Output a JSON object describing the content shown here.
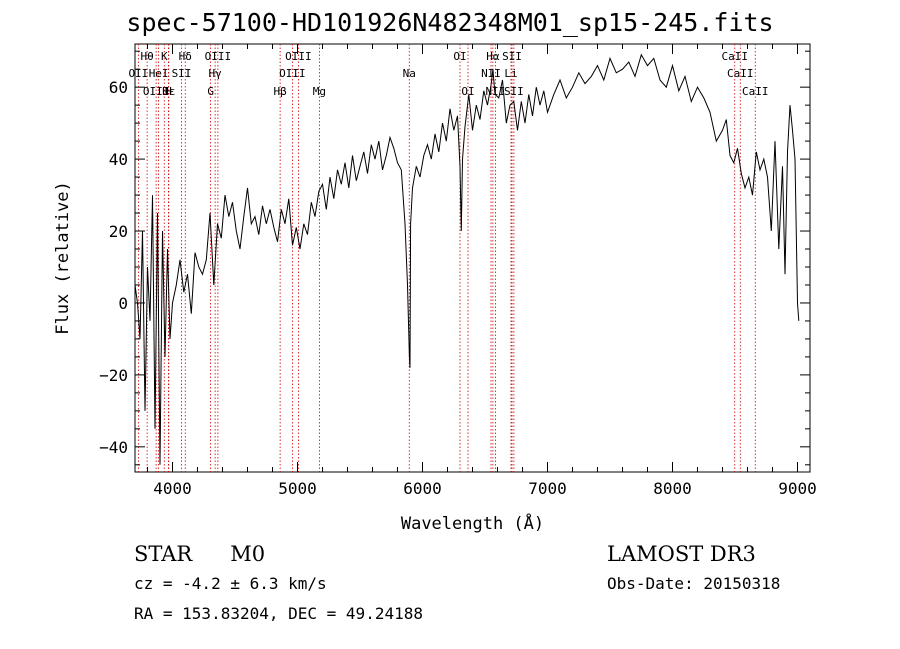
{
  "header": {
    "title": "spec-57100-HD101926N482348M01_sp15-245.fits"
  },
  "info": {
    "object_class": "STAR",
    "subclass": "M0",
    "cz": "cz = -4.2 ± 6.3 km/s",
    "radec": "RA = 153.83204, DEC =  49.24188",
    "survey": "LAMOST DR3",
    "obs_date": "Obs-Date: 20150318"
  },
  "chart_data": {
    "type": "line",
    "title": "spec-57100-HD101926N482348M01_sp15-245.fits",
    "xlabel": "Wavelength (Å)",
    "ylabel": "Flux (relative)",
    "xlim": [
      3700,
      9100
    ],
    "ylim": [
      -47,
      72
    ],
    "xticks": [
      4000,
      5000,
      6000,
      7000,
      8000,
      9000
    ],
    "yticks": [
      -40,
      -20,
      0,
      20,
      40,
      60
    ],
    "grid": false,
    "line_color": "#000000",
    "marker_color": "#cc0000",
    "series": [
      {
        "name": "spectrum",
        "x": [
          3700,
          3720,
          3740,
          3760,
          3780,
          3800,
          3820,
          3840,
          3860,
          3880,
          3900,
          3920,
          3940,
          3960,
          3980,
          4000,
          4030,
          4060,
          4090,
          4120,
          4150,
          4180,
          4210,
          4240,
          4270,
          4300,
          4330,
          4360,
          4390,
          4420,
          4450,
          4480,
          4510,
          4540,
          4570,
          4600,
          4630,
          4660,
          4690,
          4720,
          4750,
          4780,
          4810,
          4840,
          4870,
          4900,
          4930,
          4960,
          4990,
          5020,
          5050,
          5080,
          5110,
          5140,
          5170,
          5200,
          5230,
          5260,
          5290,
          5320,
          5350,
          5380,
          5410,
          5440,
          5470,
          5500,
          5530,
          5560,
          5590,
          5620,
          5650,
          5680,
          5710,
          5740,
          5770,
          5800,
          5830,
          5860,
          5880,
          5895,
          5900,
          5905,
          5920,
          5950,
          5980,
          6010,
          6040,
          6070,
          6100,
          6130,
          6160,
          6190,
          6220,
          6250,
          6280,
          6300,
          6310,
          6320,
          6340,
          6370,
          6400,
          6430,
          6460,
          6490,
          6520,
          6550,
          6563,
          6580,
          6610,
          6640,
          6670,
          6700,
          6730,
          6760,
          6790,
          6820,
          6850,
          6880,
          6910,
          6940,
          6970,
          7000,
          7050,
          7100,
          7150,
          7200,
          7250,
          7300,
          7350,
          7400,
          7450,
          7500,
          7550,
          7600,
          7650,
          7700,
          7750,
          7800,
          7850,
          7900,
          7950,
          8000,
          8050,
          8100,
          8150,
          8200,
          8250,
          8300,
          8350,
          8400,
          8430,
          8460,
          8490,
          8520,
          8550,
          8580,
          8610,
          8640,
          8670,
          8700,
          8730,
          8760,
          8790,
          8820,
          8850,
          8880,
          8900,
          8920,
          8940,
          8960,
          8980,
          9000,
          9010
        ],
        "y": [
          5,
          0,
          -10,
          20,
          -30,
          10,
          -5,
          30,
          -35,
          25,
          -45,
          20,
          -15,
          15,
          -10,
          0,
          5,
          12,
          3,
          8,
          -3,
          14,
          10,
          8,
          12,
          25,
          5,
          22,
          18,
          30,
          24,
          28,
          20,
          15,
          24,
          32,
          22,
          24,
          19,
          27,
          22,
          26,
          21,
          17,
          26,
          22,
          29,
          16,
          21,
          15,
          22,
          19,
          28,
          24,
          31,
          33,
          26,
          35,
          29,
          37,
          33,
          39,
          32,
          41,
          34,
          38,
          42,
          36,
          44,
          40,
          45,
          37,
          41,
          46,
          43,
          39,
          37,
          22,
          5,
          -15,
          -18,
          22,
          32,
          38,
          35,
          41,
          44,
          40,
          47,
          42,
          50,
          45,
          54,
          48,
          52,
          38,
          20,
          40,
          49,
          58,
          48,
          55,
          51,
          59,
          55,
          61,
          65,
          58,
          57,
          62,
          50,
          55,
          56,
          48,
          56,
          50,
          58,
          52,
          60,
          55,
          59,
          53,
          58,
          62,
          57,
          60,
          64,
          61,
          63,
          66,
          62,
          68,
          64,
          65,
          67,
          63,
          69,
          66,
          68,
          62,
          60,
          66,
          59,
          63,
          56,
          60,
          57,
          53,
          45,
          48,
          51,
          41,
          39,
          43,
          36,
          32,
          35,
          30,
          42,
          37,
          40,
          35,
          20,
          45,
          15,
          38,
          8,
          42,
          55,
          48,
          40,
          0,
          -5
        ]
      }
    ],
    "lines": [
      {
        "name": "OII",
        "x": 3727,
        "label": "OII",
        "row": 2
      },
      {
        "name": "H-theta",
        "x": 3797,
        "label": "Hθ",
        "row": 1
      },
      {
        "name": "OIII-3869",
        "x": 3869,
        "label": "OIII",
        "row": 3
      },
      {
        "name": "HeI",
        "x": 3889,
        "label": "HeI",
        "row": 2
      },
      {
        "name": "K",
        "x": 3934,
        "label": "K",
        "row": 1
      },
      {
        "name": "H-epsilon",
        "x": 3970,
        "label": "Hε",
        "row": 3
      },
      {
        "name": "SII-4072",
        "x": 4072,
        "label": "SII",
        "row": 2
      },
      {
        "name": "H-delta",
        "x": 4102,
        "label": "Hδ",
        "row": 1
      },
      {
        "name": "H",
        "x": 3968,
        "label": "H",
        "row": 3
      },
      {
        "name": "G",
        "x": 4305,
        "label": "G",
        "row": 3
      },
      {
        "name": "H-gamma",
        "x": 4341,
        "label": "Hγ",
        "row": 2
      },
      {
        "name": "OIII-4363",
        "x": 4363,
        "label": "OIII",
        "row": 1
      },
      {
        "name": "H-beta",
        "x": 4861,
        "label": "Hβ",
        "row": 3
      },
      {
        "name": "OIII-4959",
        "x": 4959,
        "label": "OIII",
        "row": 2
      },
      {
        "name": "OIII-5007",
        "x": 5007,
        "label": "OIII",
        "row": 1
      },
      {
        "name": "Mg",
        "x": 5175,
        "label": "Mg",
        "row": 3
      },
      {
        "name": "Na",
        "x": 5894,
        "label": "Na",
        "row": 2
      },
      {
        "name": "OI-6300",
        "x": 6300,
        "label": "OI",
        "row": 1
      },
      {
        "name": "OI-6364",
        "x": 6364,
        "label": "OI",
        "row": 3
      },
      {
        "name": "NII-6548",
        "x": 6548,
        "label": "NII",
        "row": 2
      },
      {
        "name": "H-alpha",
        "x": 6563,
        "label": "Hα",
        "row": 1
      },
      {
        "name": "NII-6583",
        "x": 6583,
        "label": "NII",
        "row": 3
      },
      {
        "name": "Li",
        "x": 6708,
        "label": "Li",
        "row": 2
      },
      {
        "name": "SII-6716",
        "x": 6716,
        "label": "SII",
        "row": 1
      },
      {
        "name": "SII-6731",
        "x": 6731,
        "label": "SII",
        "row": 3
      },
      {
        "name": "CaII-8498",
        "x": 8498,
        "label": "CaII",
        "row": 1
      },
      {
        "name": "CaII-8542",
        "x": 8542,
        "label": "CaII",
        "row": 2
      },
      {
        "name": "CaII-8662",
        "x": 8662,
        "label": "CaII",
        "row": 3
      }
    ]
  }
}
